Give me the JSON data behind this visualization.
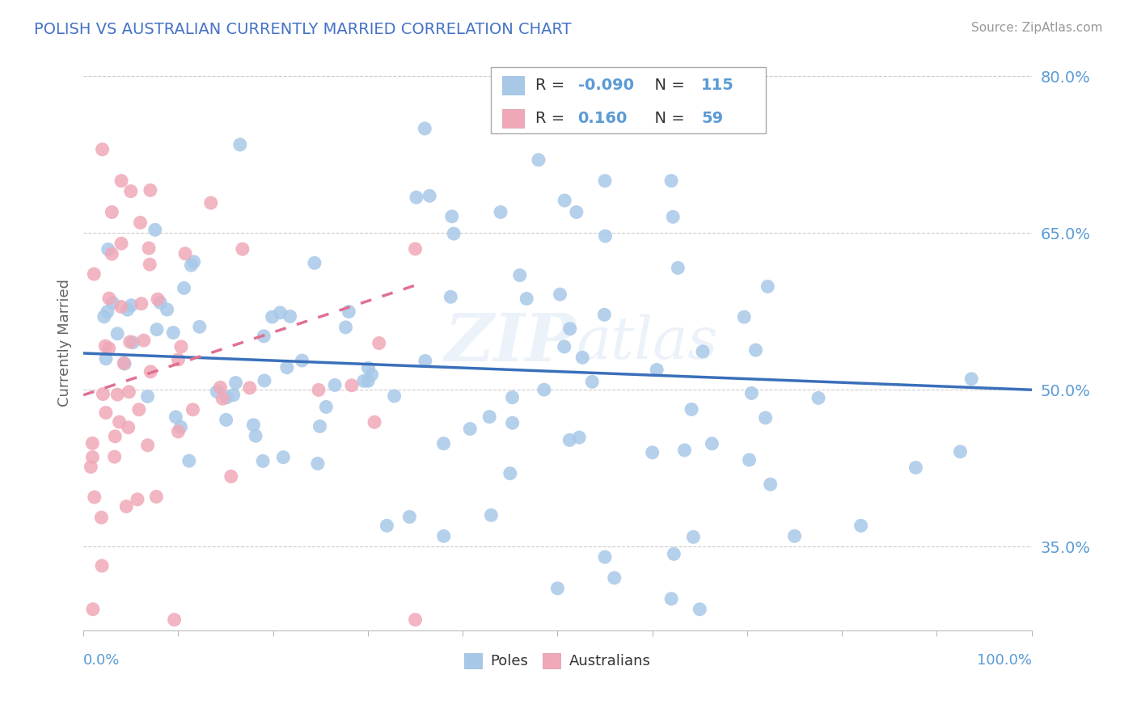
{
  "title": "POLISH VS AUSTRALIAN CURRENTLY MARRIED CORRELATION CHART",
  "source": "Source: ZipAtlas.com",
  "ylabel": "Currently Married",
  "poles_color": "#a8c8e8",
  "aus_color": "#f0a8b8",
  "poles_line_color": "#3a6fba",
  "aus_line_color": "#e07090",
  "aus_line_dashed": true,
  "watermark": "ZIPatlas",
  "title_color": "#4472c4",
  "xlim": [
    0.0,
    1.0
  ],
  "ylim": [
    0.27,
    0.82
  ],
  "yticks": [
    0.35,
    0.5,
    0.65,
    0.8
  ],
  "yticklabels": [
    "35.0%",
    "50.0%",
    "65.0%",
    "80.0%"
  ],
  "background_color": "#ffffff",
  "grid_color": "#cccccc",
  "legend_r_poles_val": "-0.090",
  "legend_n_poles": "115",
  "legend_r_aus_val": "0.160",
  "legend_n_aus": "59",
  "label_color": "#5b9bd5"
}
